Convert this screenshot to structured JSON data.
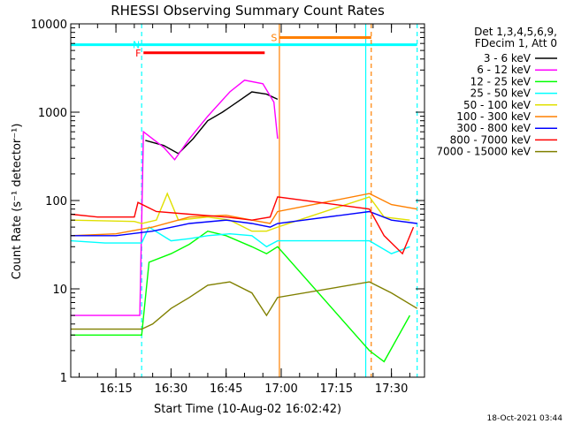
{
  "chart_data": {
    "type": "line",
    "title": "RHESSI Observing Summary Count Rates",
    "xlabel": "Start Time (10-Aug-02 16:02:42)",
    "ylabel": "Count Rate (s⁻¹ detector⁻¹)",
    "y_scale": "log",
    "ylim": [
      1,
      10000
    ],
    "xlim": [
      "16:02:42",
      "17:39:00"
    ],
    "x_ticks": [
      "16:15",
      "16:30",
      "16:45",
      "17:00",
      "17:15",
      "17:30"
    ],
    "y_ticks": [
      "1",
      "10",
      "100",
      "1000",
      "10000"
    ],
    "legend_position": "top-right",
    "legend_header": [
      "Det 1,3,4,5,6,9,",
      "FDecim 1, Att 0"
    ],
    "series": [
      {
        "name": "3 - 6 keV",
        "color": "#000000",
        "points": [
          [
            "16:23:00",
            480
          ],
          [
            "16:28:00",
            420
          ],
          [
            "16:32:00",
            340
          ],
          [
            "16:36:00",
            500
          ],
          [
            "16:40:00",
            800
          ],
          [
            "16:44:00",
            1000
          ],
          [
            "16:48:00",
            1300
          ],
          [
            "16:52:00",
            1700
          ],
          [
            "16:56:00",
            1600
          ],
          [
            "16:59:00",
            1400
          ]
        ]
      },
      {
        "name": "6 - 12 keV",
        "color": "#ff00ff",
        "points": [
          [
            "16:02:42",
            5
          ],
          [
            "16:20:00",
            5
          ],
          [
            "16:21:30",
            5
          ],
          [
            "16:22:30",
            600
          ],
          [
            "16:28:00",
            400
          ],
          [
            "16:31:00",
            290
          ],
          [
            "16:35:00",
            500
          ],
          [
            "16:40:00",
            900
          ],
          [
            "16:46:00",
            1700
          ],
          [
            "16:50:00",
            2300
          ],
          [
            "16:55:00",
            2100
          ],
          [
            "16:58:00",
            1300
          ],
          [
            "16:59:00",
            500
          ]
        ]
      },
      {
        "name": "12 - 25 keV",
        "color": "#00ff00",
        "points": [
          [
            "16:02:42",
            3
          ],
          [
            "16:22:00",
            3
          ],
          [
            "16:24:00",
            20
          ],
          [
            "16:30:00",
            25
          ],
          [
            "16:35:00",
            32
          ],
          [
            "16:40:00",
            45
          ],
          [
            "16:45:00",
            40
          ],
          [
            "16:52:00",
            30
          ],
          [
            "16:56:00",
            25
          ],
          [
            "16:59:00",
            30
          ],
          [
            "17:24:00",
            2
          ],
          [
            "17:28:00",
            1.5
          ],
          [
            "17:35:00",
            5
          ]
        ]
      },
      {
        "name": "25 - 50 keV",
        "color": "#00ffff",
        "points": [
          [
            "16:02:42",
            35
          ],
          [
            "16:12:00",
            33
          ],
          [
            "16:22:00",
            33
          ],
          [
            "16:24:00",
            50
          ],
          [
            "16:30:00",
            35
          ],
          [
            "16:35:00",
            37
          ],
          [
            "16:40:00",
            40
          ],
          [
            "16:46:00",
            42
          ],
          [
            "16:52:00",
            40
          ],
          [
            "16:56:00",
            30
          ],
          [
            "16:59:00",
            35
          ],
          [
            "17:24:00",
            35
          ],
          [
            "17:30:00",
            25
          ],
          [
            "17:35:00",
            30
          ]
        ]
      },
      {
        "name": "50 - 100 keV",
        "color": "#e0e000",
        "points": [
          [
            "16:02:42",
            60
          ],
          [
            "16:20:00",
            58
          ],
          [
            "16:22:00",
            55
          ],
          [
            "16:26:00",
            60
          ],
          [
            "16:29:00",
            120
          ],
          [
            "16:32:00",
            60
          ],
          [
            "16:40:00",
            65
          ],
          [
            "16:46:00",
            60
          ],
          [
            "16:52:00",
            45
          ],
          [
            "16:56:00",
            45
          ],
          [
            "16:59:00",
            50
          ],
          [
            "17:24:00",
            110
          ],
          [
            "17:28:00",
            65
          ],
          [
            "17:35:00",
            60
          ]
        ]
      },
      {
        "name": "100 - 300 keV",
        "color": "#ff8000",
        "points": [
          [
            "16:02:42",
            40
          ],
          [
            "16:15:00",
            42
          ],
          [
            "16:25:00",
            50
          ],
          [
            "16:35:00",
            65
          ],
          [
            "16:45:00",
            68
          ],
          [
            "16:52:00",
            60
          ],
          [
            "16:57:00",
            55
          ],
          [
            "16:59:00",
            75
          ],
          [
            "17:24:00",
            120
          ],
          [
            "17:30:00",
            90
          ],
          [
            "17:37:00",
            80
          ]
        ]
      },
      {
        "name": "300 - 800 keV",
        "color": "#0000ff",
        "points": [
          [
            "16:02:42",
            40
          ],
          [
            "16:15:00",
            40
          ],
          [
            "16:25:00",
            45
          ],
          [
            "16:35:00",
            55
          ],
          [
            "16:45:00",
            60
          ],
          [
            "16:52:00",
            55
          ],
          [
            "16:57:00",
            50
          ],
          [
            "16:59:00",
            55
          ],
          [
            "17:24:00",
            75
          ],
          [
            "17:30:00",
            60
          ],
          [
            "17:37:00",
            55
          ]
        ]
      },
      {
        "name": "800 - 7000 keV",
        "color": "#ff0000",
        "points": [
          [
            "16:02:42",
            70
          ],
          [
            "16:10:00",
            65
          ],
          [
            "16:20:00",
            65
          ],
          [
            "16:21:00",
            95
          ],
          [
            "16:26:00",
            75
          ],
          [
            "16:35:00",
            70
          ],
          [
            "16:45:00",
            65
          ],
          [
            "16:52:00",
            60
          ],
          [
            "16:57:00",
            65
          ],
          [
            "16:59:00",
            110
          ],
          [
            "17:24:00",
            80
          ],
          [
            "17:28:00",
            40
          ],
          [
            "17:33:00",
            25
          ],
          [
            "17:36:00",
            50
          ]
        ]
      },
      {
        "name": "7000 - 15000 keV",
        "color": "#808000",
        "points": [
          [
            "16:02:42",
            3.5
          ],
          [
            "16:20:00",
            3.5
          ],
          [
            "16:22:00",
            3.5
          ],
          [
            "16:25:00",
            4
          ],
          [
            "16:30:00",
            6
          ],
          [
            "16:35:00",
            8
          ],
          [
            "16:40:00",
            11
          ],
          [
            "16:46:00",
            12
          ],
          [
            "16:52:00",
            9
          ],
          [
            "16:56:00",
            5
          ],
          [
            "16:59:00",
            8
          ],
          [
            "17:24:00",
            12
          ],
          [
            "17:30:00",
            9
          ],
          [
            "17:37:00",
            6
          ]
        ]
      }
    ],
    "annotations": [
      {
        "label": "N",
        "color": "#00ffff",
        "start": "16:22:00",
        "end": "17:23:00",
        "level": 5800
      },
      {
        "label": "F",
        "color": "#ff0000",
        "start": "16:22:30",
        "end": "16:55:30",
        "level": 4700
      },
      {
        "label": "S",
        "color": "#ff8000",
        "start": "16:59:30",
        "end": "17:24:30",
        "level": 7000
      }
    ],
    "cyan_bars": [
      {
        "start": "16:02:42",
        "end": "16:22:00",
        "level": 5800
      },
      {
        "start": "17:23:00",
        "end": "17:37:00",
        "level": 5800
      }
    ],
    "markers": [
      {
        "time": "16:22:00",
        "color": "#00ffff",
        "style": "dashed"
      },
      {
        "time": "17:23:00",
        "color": "#00ffff",
        "style": "solid"
      },
      {
        "time": "17:24:30",
        "color": "#ff8000",
        "style": "dashed"
      },
      {
        "time": "17:37:00",
        "color": "#00ffff",
        "style": "dashed"
      },
      {
        "time": "16:59:30",
        "color": "#ff8000",
        "style": "solid"
      }
    ],
    "timestamp": "18-Oct-2021 03:44"
  }
}
